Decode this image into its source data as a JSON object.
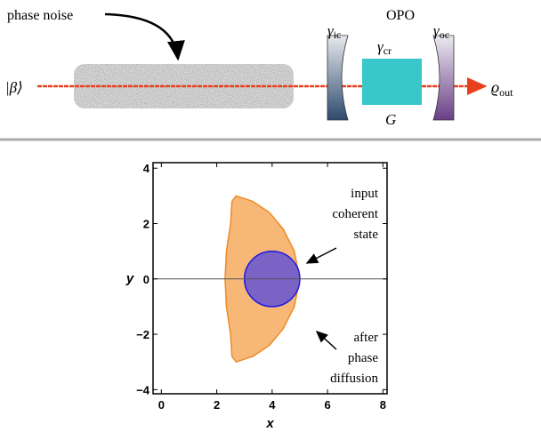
{
  "diagram": {
    "phase_noise": "phase noise",
    "input": "|β⟩",
    "opo": "OPO",
    "mirror_in": {
      "symbol": "γ",
      "sub": "ic"
    },
    "crystal": {
      "symbol": "γ",
      "sub": "cr"
    },
    "mirror_out": {
      "symbol": "γ",
      "sub": "oc"
    },
    "gain": "G",
    "output": {
      "symbol": "ϱ",
      "sub": "out"
    }
  },
  "chart_data": {
    "type": "shapes",
    "xlabel": "x",
    "ylabel": "y",
    "xlim": [
      -0.3,
      8.15
    ],
    "ylim": [
      -4.15,
      4.2
    ],
    "xticks": [
      0,
      2,
      4,
      6,
      8
    ],
    "yticks": [
      {
        "value": -4,
        "label": "−4"
      },
      {
        "value": -2,
        "label": "−2"
      },
      0,
      2,
      4
    ],
    "series": [
      {
        "shape": "polygon",
        "color": "#f7b777",
        "edge": "#ee8a25",
        "x": [
          2.7,
          3.3,
          3.9,
          4.4,
          4.8,
          5.0,
          4.8,
          4.4,
          3.9,
          3.3,
          2.7,
          2.55,
          2.5,
          2.35,
          2.3,
          2.35,
          2.5,
          2.55
        ],
        "y": [
          3.0,
          2.8,
          2.4,
          1.8,
          1.0,
          0,
          -1.0,
          -1.8,
          -2.4,
          -2.8,
          -3.0,
          -2.8,
          -2.0,
          -1.0,
          0,
          1.0,
          2.0,
          2.8
        ]
      },
      {
        "shape": "circle",
        "color": "#7b63c6",
        "edge": "#1a1ae0",
        "cx": 4,
        "cy": 0,
        "r": 1
      }
    ],
    "annotations": [
      {
        "lines": [
          "input",
          "coherent",
          "state"
        ],
        "target": 1
      },
      {
        "lines": [
          "after",
          "phase",
          "diffusion"
        ],
        "target": 0
      }
    ]
  }
}
